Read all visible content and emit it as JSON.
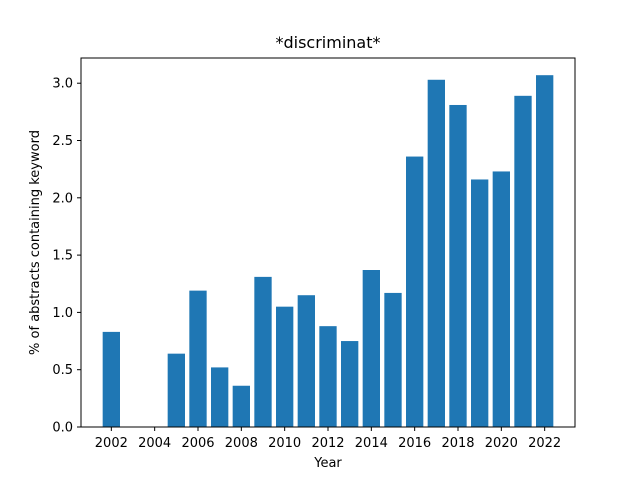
{
  "chart_data": {
    "type": "bar",
    "title": "*discriminat*",
    "xlabel": "Year",
    "ylabel": "% of abstracts containing keyword",
    "categories": [
      2002,
      2003,
      2004,
      2005,
      2006,
      2007,
      2008,
      2009,
      2010,
      2011,
      2012,
      2013,
      2014,
      2015,
      2016,
      2017,
      2018,
      2019,
      2020,
      2021,
      2022
    ],
    "values": [
      0.83,
      0,
      0,
      0.64,
      1.19,
      0.52,
      0.36,
      1.31,
      1.05,
      1.15,
      0.88,
      0.75,
      1.37,
      1.17,
      2.36,
      3.03,
      2.81,
      2.16,
      2.23,
      2.89,
      3.07
    ],
    "xticks": [
      "2002",
      "2004",
      "2006",
      "2008",
      "2010",
      "2012",
      "2014",
      "2016",
      "2018",
      "2020",
      "2022"
    ],
    "yticks": [
      "0.0",
      "0.5",
      "1.0",
      "1.5",
      "2.0",
      "2.5",
      "3.0"
    ],
    "xlim": [
      2000.6,
      2023.4
    ],
    "ylim": [
      0,
      3.22
    ],
    "bar_color": "#1f77b4",
    "grid": false
  }
}
